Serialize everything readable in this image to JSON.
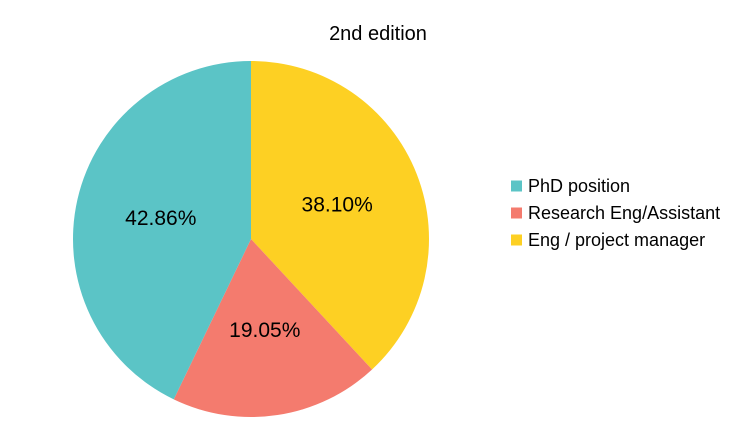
{
  "chart_data": {
    "type": "pie",
    "title": "2nd edition",
    "categories": [
      "PhD position",
      "Research Eng/Assistant",
      "Eng / project manager"
    ],
    "values": [
      42.86,
      19.05,
      38.1
    ],
    "labels": [
      "42.86%",
      "19.05%",
      "38.10%"
    ],
    "colors": [
      "#5bc4c6",
      "#f47b6e",
      "#fdd023"
    ],
    "start": "12 o'clock",
    "direction": "clockwise",
    "order_drawn": [
      "Eng / project manager",
      "Research Eng/Assistant",
      "PhD position"
    ],
    "legend": "right"
  }
}
